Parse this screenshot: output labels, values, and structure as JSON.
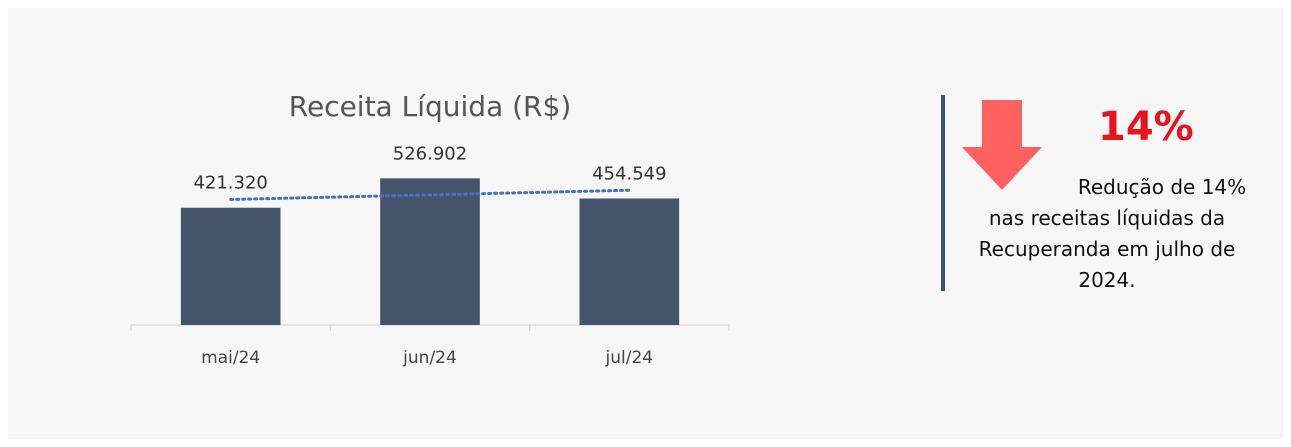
{
  "chart_data": {
    "type": "bar",
    "title": "Receita Líquida (R$)",
    "categories": [
      "mai/24",
      "jun/24",
      "jul/24"
    ],
    "values": [
      421320,
      526902,
      454549
    ],
    "value_labels": [
      "421.320",
      "526.902",
      "454.549"
    ],
    "color": "#44546a",
    "ylim": [
      0,
      600000
    ],
    "trendline": true,
    "trendline_color": "#4472c4"
  },
  "callout": {
    "headline": "14%",
    "text": "Redução de 14% nas receitas líquidas da Recuperanda em julho de 2024."
  }
}
